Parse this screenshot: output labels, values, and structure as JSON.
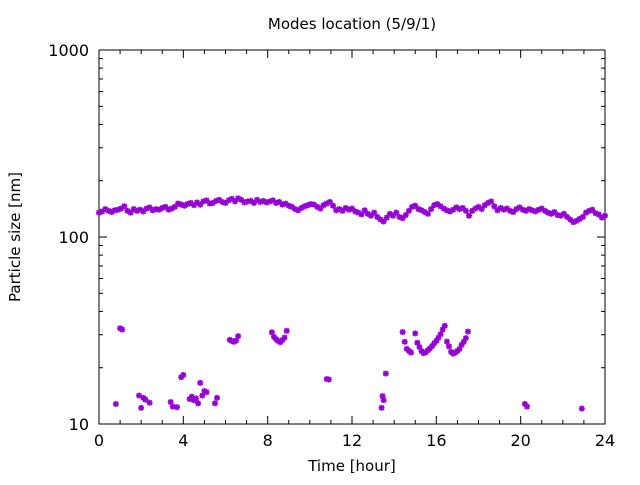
{
  "chart_data": {
    "type": "scatter",
    "title": "Modes location (5/9/1)",
    "xlabel": "Time [hour]",
    "ylabel": "Particle size [nm]",
    "xlim": [
      0,
      24
    ],
    "ylim": [
      10,
      1000
    ],
    "yscale": "log",
    "grid": false,
    "legend": "none",
    "x_ticks": [
      0,
      4,
      8,
      12,
      16,
      20,
      24
    ],
    "x_tick_labels": [
      "0",
      "4",
      "8",
      "12",
      "16",
      "20",
      "24"
    ],
    "y_ticks": [
      10,
      100,
      1000
    ],
    "y_tick_labels": [
      "10",
      "100",
      "1000"
    ],
    "marker_color": "#9400d3",
    "series": [
      {
        "values_note": "",
        "x": [
          0,
          0.15,
          0.3,
          0.45,
          0.6,
          0.75,
          0.9,
          1.05,
          1.2,
          1.35,
          1.5,
          1.65,
          1.8,
          1.95,
          2.1,
          2.25,
          2.4,
          2.55,
          2.7,
          2.85,
          3.0,
          3.15,
          3.3,
          3.45,
          3.6,
          3.75,
          3.9,
          4.05,
          4.2,
          4.35,
          4.5,
          4.65,
          4.8,
          4.95,
          5.1,
          5.25,
          5.4,
          5.55,
          5.7,
          5.85,
          6.0,
          6.15,
          6.3,
          6.45,
          6.6,
          6.75,
          6.9,
          7.05,
          7.2,
          7.35,
          7.5,
          7.65,
          7.8,
          7.95,
          8.1,
          8.25,
          8.4,
          8.55,
          8.7,
          8.85,
          9.0,
          9.15,
          9.3,
          9.45,
          9.6,
          9.75,
          9.9,
          10.05,
          10.2,
          10.35,
          10.5,
          10.65,
          10.8,
          10.95,
          11.1,
          11.25,
          11.4,
          11.55,
          11.7,
          11.85,
          12.0,
          12.15,
          12.3,
          12.45,
          12.6,
          12.75,
          12.9,
          13.05,
          13.2,
          13.35,
          13.5,
          13.65,
          13.8,
          13.95,
          14.1,
          14.25,
          14.4,
          14.55,
          14.7,
          14.85,
          15.0,
          15.15,
          15.3,
          15.45,
          15.6,
          15.75,
          15.9,
          16.05,
          16.2,
          16.35,
          16.5,
          16.65,
          16.8,
          16.95,
          17.1,
          17.25,
          17.4,
          17.55,
          17.7,
          17.85,
          18.0,
          18.15,
          18.3,
          18.45,
          18.6,
          18.75,
          18.9,
          19.05,
          19.2,
          19.35,
          19.5,
          19.65,
          19.8,
          19.95,
          20.1,
          20.25,
          20.4,
          20.55,
          20.7,
          20.85,
          21.0,
          21.15,
          21.3,
          21.45,
          21.6,
          21.75,
          21.9,
          22.05,
          22.2,
          22.35,
          22.5,
          22.65,
          22.8,
          22.95,
          23.1,
          23.25,
          23.4,
          23.55,
          23.7,
          23.85,
          24.0,
          0.8,
          1.0,
          1.1,
          1.9,
          2.0,
          2.1,
          2.2,
          2.4,
          3.4,
          3.5,
          3.7,
          3.9,
          4.0,
          4.3,
          4.4,
          4.5,
          4.6,
          4.7,
          4.8,
          4.9,
          5.0,
          5.1,
          5.5,
          5.6,
          6.2,
          6.3,
          6.4,
          6.5,
          6.6,
          8.2,
          8.3,
          8.4,
          8.5,
          8.6,
          8.7,
          8.8,
          8.9,
          10.8,
          10.9,
          13.4,
          13.45,
          13.5,
          13.6,
          14.4,
          14.5,
          14.6,
          14.7,
          14.8,
          15.0,
          15.1,
          15.2,
          15.3,
          15.4,
          15.5,
          15.6,
          15.7,
          15.8,
          15.9,
          16.0,
          16.1,
          16.2,
          16.3,
          16.4,
          16.5,
          16.6,
          16.7,
          16.8,
          16.9,
          17.0,
          17.1,
          17.2,
          17.3,
          17.4,
          17.5,
          20.2,
          20.3,
          22.9
        ],
        "y": [
          135,
          137,
          141,
          138,
          136,
          139,
          140,
          142,
          146,
          138,
          135,
          141,
          138,
          140,
          137,
          142,
          144,
          139,
          141,
          140,
          143,
          145,
          140,
          142,
          145,
          151,
          149,
          147,
          150,
          152,
          148,
          153,
          149,
          155,
          157,
          151,
          152,
          156,
          158,
          154,
          152,
          157,
          160,
          155,
          161,
          158,
          153,
          155,
          156,
          152,
          158,
          154,
          156,
          153,
          155,
          157,
          152,
          154,
          149,
          151,
          147,
          145,
          141,
          139,
          143,
          146,
          148,
          150,
          149,
          145,
          142,
          148,
          151,
          154,
          147,
          139,
          141,
          138,
          143,
          140,
          142,
          137,
          135,
          132,
          139,
          133,
          130,
          135,
          128,
          124,
          121,
          127,
          133,
          130,
          135,
          128,
          126,
          131,
          138,
          145,
          147,
          141,
          139,
          136,
          133,
          141,
          148,
          150,
          146,
          142,
          139,
          137,
          140,
          144,
          141,
          143,
          138,
          130,
          138,
          142,
          145,
          141,
          148,
          152,
          155,
          146,
          139,
          143,
          140,
          142,
          138,
          136,
          141,
          144,
          140,
          138,
          141,
          139,
          137,
          140,
          142,
          138,
          135,
          133,
          136,
          131,
          130,
          133,
          128,
          124,
          120,
          122,
          125,
          128,
          135,
          138,
          140,
          134,
          132,
          127,
          130,
          12.8,
          32.5,
          32,
          14.2,
          12.2,
          13.8,
          13.5,
          13.0,
          13.1,
          12.4,
          12.3,
          17.8,
          18.3,
          13.6,
          14.0,
          13.4,
          13.7,
          12.9,
          16.6,
          14.2,
          15.0,
          14.8,
          12.9,
          13.8,
          28.2,
          27.8,
          27.5,
          27.9,
          29.5,
          30.9,
          29.2,
          28.4,
          27.8,
          27.4,
          28.1,
          29.0,
          31.5,
          17.4,
          17.3,
          12.2,
          14.1,
          13.4,
          18.6,
          31.0,
          27.5,
          25.2,
          24.6,
          24.1,
          30.5,
          27.2,
          25.8,
          24.5,
          23.9,
          24.2,
          24.8,
          25.4,
          26.1,
          27.0,
          27.8,
          28.9,
          30.2,
          32.0,
          33.5,
          27.6,
          26.0,
          24.3,
          23.8,
          24.1,
          24.6,
          25.2,
          26.5,
          27.5,
          28.8,
          31.2,
          12.8,
          12.4,
          12.1
        ]
      }
    ]
  }
}
